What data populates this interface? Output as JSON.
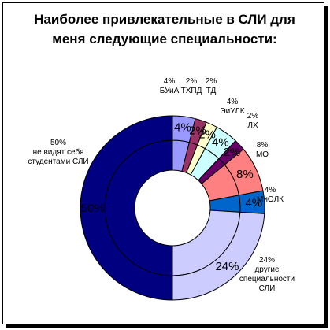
{
  "chart_data": {
    "type": "pie",
    "title_lines": [
      "Наиболее привлекательные в СЛИ для",
      "меня следующие специальности:"
    ],
    "slices": [
      {
        "label": "БУиА",
        "value": 4,
        "color": "#9999ff"
      },
      {
        "label": "ТХПД",
        "value": 2,
        "color": "#993366"
      },
      {
        "label": "ТД",
        "value": 2,
        "color": "#ffffcc"
      },
      {
        "label": "ЭиУЛК",
        "value": 4,
        "color": "#ccffff"
      },
      {
        "label": "ЛХ",
        "value": 2,
        "color": "#660066"
      },
      {
        "label": "МО",
        "value": 8,
        "color": "#ff8080"
      },
      {
        "label": "МиОЛК",
        "value": 4,
        "color": "#0066cc"
      },
      {
        "label": "другие специальности СЛИ",
        "value": 24,
        "color": "#ccccff"
      },
      {
        "label": "не видят себя студентами СЛИ",
        "value": 50,
        "color": "#000080"
      }
    ],
    "external_labels": [
      {
        "pct": "4%",
        "lines": [
          "БУиА"
        ]
      },
      {
        "pct": "2%",
        "lines": [
          "ТХПД"
        ]
      },
      {
        "pct": "2%",
        "lines": [
          "ТД"
        ]
      },
      {
        "pct": "4%",
        "lines": [
          "ЭиУЛК"
        ]
      },
      {
        "pct": "2%",
        "lines": [
          "ЛХ"
        ]
      },
      {
        "pct": "8%",
        "lines": [
          "МО"
        ]
      },
      {
        "pct": "4%",
        "lines": [
          "МиОЛК"
        ]
      },
      {
        "pct": "24%",
        "lines": [
          "другие",
          "специальности",
          "СЛИ"
        ]
      },
      {
        "pct": "50%",
        "lines": [
          "не видят себя",
          "студентами СЛИ"
        ]
      }
    ],
    "ring_labels": [
      "4%",
      "2%",
      "2%",
      "4%",
      "2%",
      "8%",
      "4%",
      "24%",
      "50%"
    ]
  }
}
